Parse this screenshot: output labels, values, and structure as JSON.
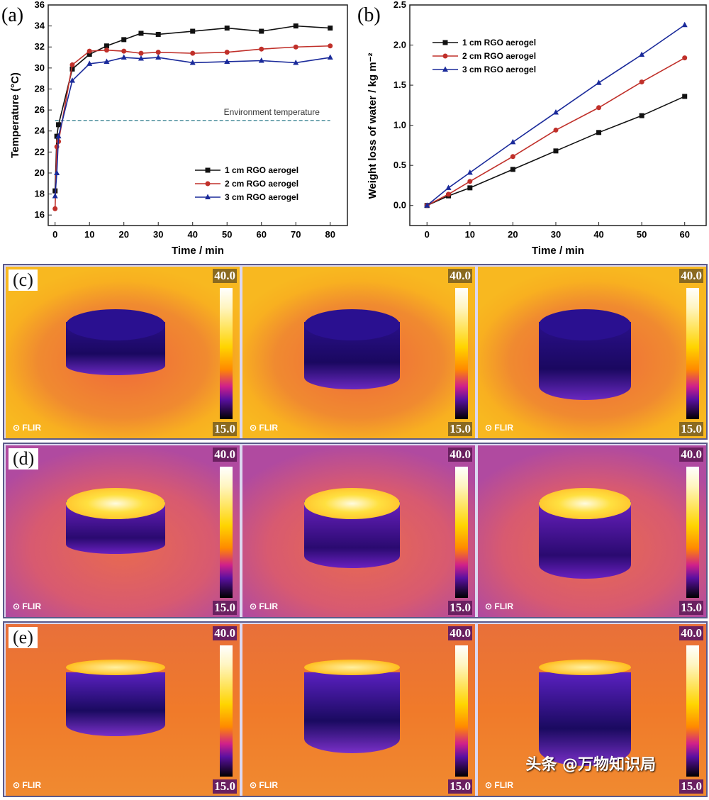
{
  "chart_data": [
    {
      "panel": "(a)",
      "type": "line",
      "xlabel": "Time / min",
      "ylabel": "Temperature (°C)",
      "xlim": [
        -2,
        85
      ],
      "ylim": [
        15,
        36
      ],
      "xticks": [
        0,
        10,
        20,
        30,
        40,
        50,
        60,
        70,
        80
      ],
      "yticks": [
        16,
        18,
        20,
        22,
        24,
        26,
        28,
        30,
        32,
        34,
        36
      ],
      "legend": "bottom-right",
      "annotation": {
        "text": "Environment temperature",
        "y": 25,
        "color": "#2a7a8a"
      },
      "x": [
        0,
        0.5,
        1,
        5,
        10,
        15,
        20,
        25,
        30,
        40,
        50,
        60,
        70,
        80
      ],
      "series": [
        {
          "name": "1 cm RGO aerogel",
          "color": "#111111",
          "marker": "square",
          "values": [
            18.3,
            23.5,
            24.6,
            29.9,
            31.3,
            32.1,
            32.7,
            33.3,
            33.2,
            33.5,
            33.8,
            33.5,
            34.0,
            33.8
          ]
        },
        {
          "name": "2 cm RGO aerogel",
          "color": "#c0302a",
          "marker": "circle",
          "values": [
            16.6,
            22.5,
            23.0,
            30.3,
            31.6,
            31.7,
            31.6,
            31.4,
            31.5,
            31.4,
            31.5,
            31.8,
            32.0,
            32.1
          ]
        },
        {
          "name": "3 cm RGO aerogel",
          "color": "#1a2a9a",
          "marker": "triangle",
          "values": [
            17.8,
            20.0,
            23.5,
            28.8,
            30.4,
            30.6,
            31.0,
            30.9,
            31.0,
            30.5,
            30.6,
            30.7,
            30.5,
            31.0
          ]
        }
      ]
    },
    {
      "panel": "(b)",
      "type": "line",
      "xlabel": "Time / min",
      "ylabel": "Weight loss of water / kg m⁻²",
      "xlim": [
        -4,
        65
      ],
      "ylim": [
        -0.25,
        2.5
      ],
      "xticks": [
        0,
        10,
        20,
        30,
        40,
        50,
        60
      ],
      "yticks": [
        0.0,
        0.5,
        1.0,
        1.5,
        2.0,
        2.5
      ],
      "legend": "top-left",
      "x": [
        0,
        5,
        10,
        20,
        30,
        40,
        50,
        60
      ],
      "series": [
        {
          "name": "1 cm RGO aerogel",
          "color": "#111111",
          "marker": "square",
          "values": [
            0,
            0.12,
            0.22,
            0.45,
            0.68,
            0.91,
            1.12,
            1.36
          ]
        },
        {
          "name": "2 cm RGO aerogel",
          "color": "#c0302a",
          "marker": "circle",
          "values": [
            0,
            0.14,
            0.3,
            0.61,
            0.94,
            1.22,
            1.54,
            1.84
          ]
        },
        {
          "name": "3 cm RGO aerogel",
          "color": "#1a2a9a",
          "marker": "triangle",
          "values": [
            0,
            0.22,
            0.41,
            0.79,
            1.16,
            1.53,
            1.88,
            2.25
          ]
        }
      ]
    }
  ],
  "thermal": {
    "scale_max": "40.0",
    "scale_min": "15.0",
    "logo": "FLIR",
    "rows": [
      {
        "label": "(c)",
        "state": "cold"
      },
      {
        "label": "(d)",
        "state": "hot-top"
      },
      {
        "label": "(e)",
        "state": "hot-rim"
      }
    ]
  },
  "watermark": "头条 @万物知识局"
}
